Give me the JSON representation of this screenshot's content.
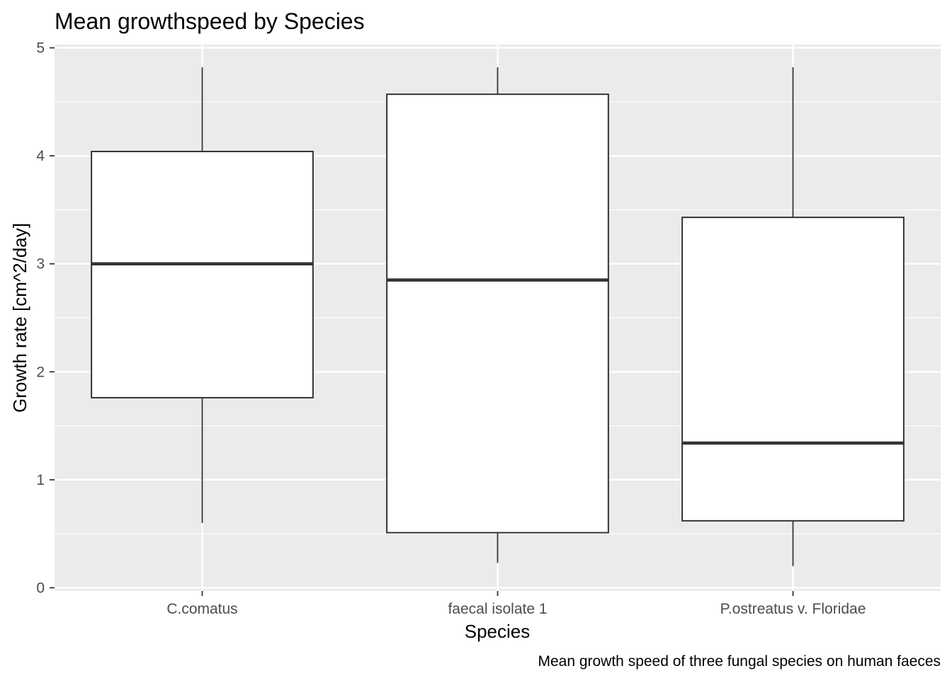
{
  "chart_data": {
    "type": "boxplot",
    "title": "Mean growthspeed by Species",
    "xlabel": "Species",
    "ylabel": "Growth rate [cm^2/day]",
    "caption": "Mean growth speed of three fungal species on human faeces",
    "categories": [
      "C.comatus",
      "faecal isolate 1",
      "P.ostreatus v. Floridae"
    ],
    "boxes": [
      {
        "category": "C.comatus",
        "whisker_low": 0.6,
        "q1": 1.76,
        "median": 3.0,
        "q3": 4.04,
        "whisker_high": 4.82
      },
      {
        "category": "faecal isolate 1",
        "whisker_low": 0.23,
        "q1": 0.51,
        "median": 2.85,
        "q3": 4.57,
        "whisker_high": 4.82
      },
      {
        "category": "P.ostreatus v. Floridae",
        "whisker_low": 0.2,
        "q1": 0.62,
        "median": 1.34,
        "q3": 3.43,
        "whisker_high": 4.82
      }
    ],
    "ylim": [
      -0.03,
      5.03
    ],
    "yticks": [
      0,
      1,
      2,
      3,
      4,
      5
    ],
    "grid": true,
    "colors": {
      "panel_background": "#ebebeb",
      "grid": "#ffffff",
      "box_fill": "#ffffff",
      "box_stroke": "#333333"
    }
  }
}
